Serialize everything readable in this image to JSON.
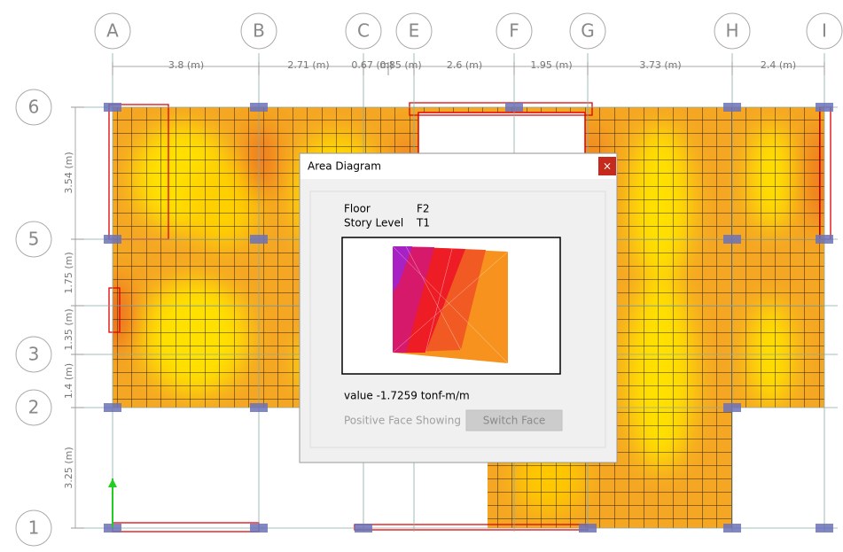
{
  "grid_columns": [
    "A",
    "B",
    "C",
    "E",
    "F",
    "G",
    "H",
    "I"
  ],
  "grid_rows": [
    "6",
    "5",
    "3",
    "2",
    "1"
  ],
  "dimensions_x": [
    "3.8 (m)",
    "2.71 (m)",
    "0.67 (m)",
    "0.85 (m)",
    "2.6 (m)",
    "1.95 (m)",
    "3.73 (m)",
    "2.4 (m)"
  ],
  "dimensions_y": [
    "3.54 (m)",
    "1.75 (m)",
    "1.35 (m)",
    "1.4 (m)",
    "3.25 (m)"
  ],
  "dialog": {
    "title": "Area Diagram",
    "close": "×",
    "floor_label": "Floor",
    "floor_value": "F2",
    "story_label": "Story Level",
    "story_value": "T1",
    "value_text": "value -1.7259 tonf-m/m",
    "face_status": "Positive Face Showing",
    "switch_button": "Switch Face"
  }
}
